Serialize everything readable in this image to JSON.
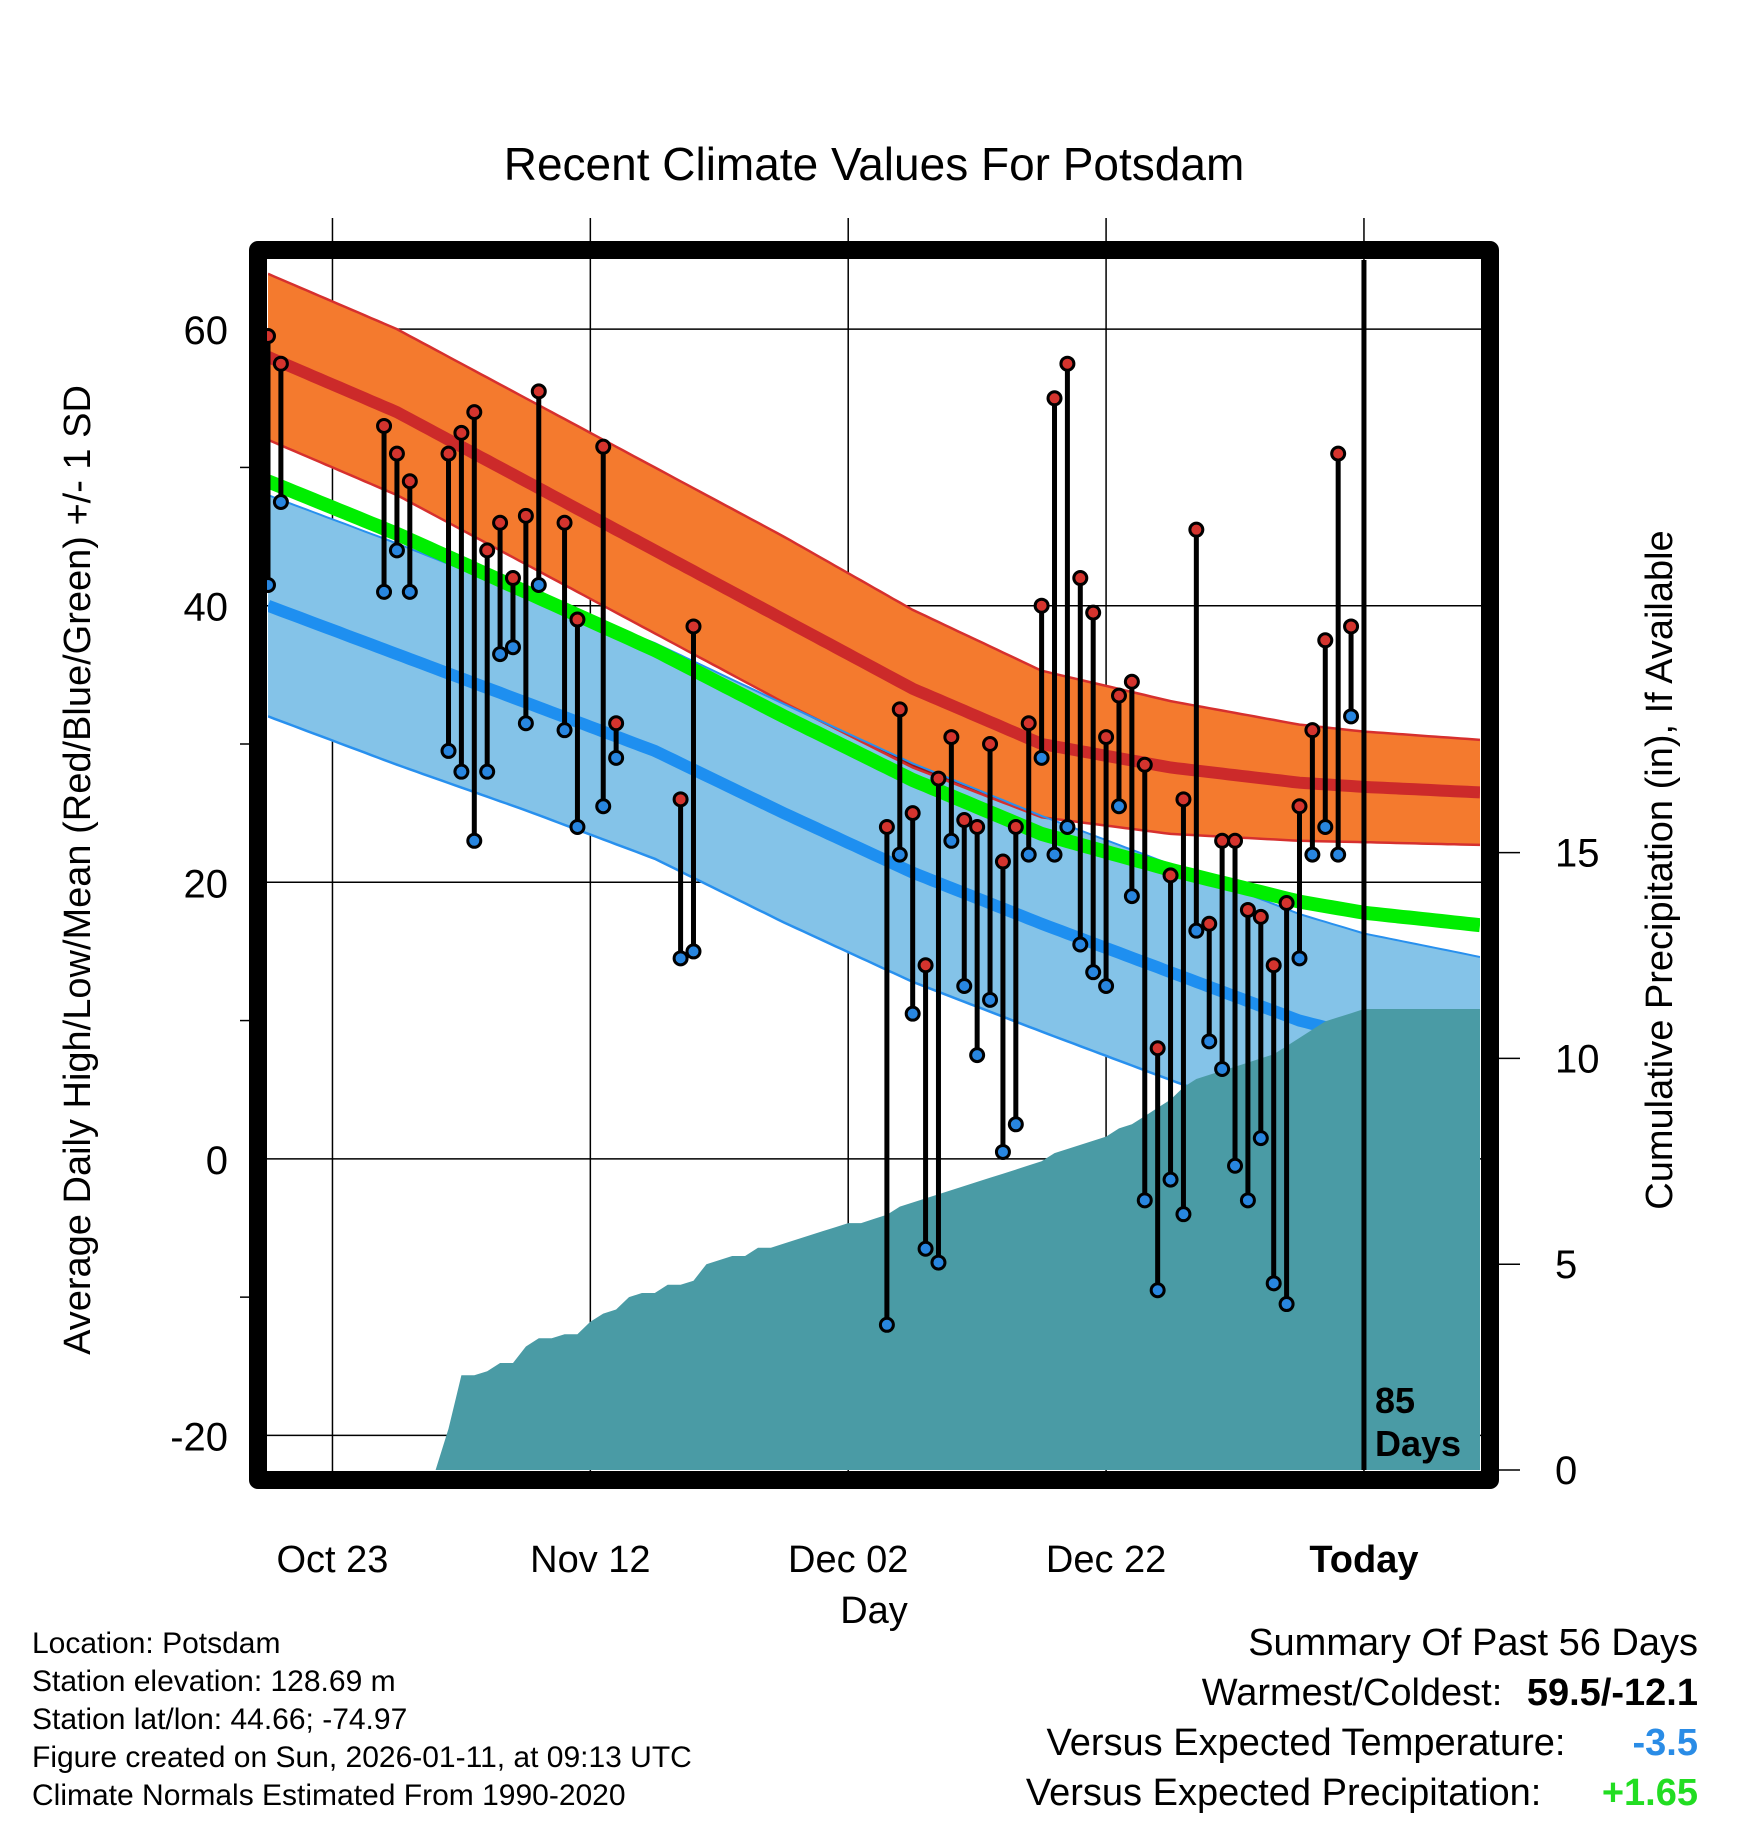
{
  "chart_data": {
    "type": "line",
    "title": "Recent Climate Values For Potsdam",
    "xlabel": "Day",
    "ylabel": "Average Daily High/Low/Mean (Red/Blue/Green) +/- 1 SD",
    "y2label": "Cumulative Precipitation (in), If Available",
    "ylim": [
      -22.5,
      65
    ],
    "y_ticks": [
      -20,
      0,
      20,
      40,
      60
    ],
    "y2lim": [
      0,
      29.4
    ],
    "y2_ticks": [
      0,
      5,
      10,
      15
    ],
    "x_range_days": [
      -85,
      9
    ],
    "x_ticks": [
      {
        "day": -80,
        "label": "Oct 23"
      },
      {
        "day": -60,
        "label": "Nov 12"
      },
      {
        "day": -40,
        "label": "Dec 02"
      },
      {
        "day": -20,
        "label": "Dec 22"
      },
      {
        "day": 0,
        "label": "Today"
      }
    ],
    "today_label": "85 Days",
    "normals": {
      "days": [
        -85,
        -75,
        -65,
        -55,
        -45,
        -35,
        -25,
        -15,
        -5,
        0,
        9
      ],
      "high_mean": [
        58,
        54,
        49,
        44,
        39,
        34,
        30,
        28.3,
        27.2,
        26.9,
        26.5
      ],
      "high_sd": [
        6,
        6,
        6,
        6,
        6,
        5.7,
        5.3,
        4.8,
        4.2,
        4.0,
        3.8
      ],
      "low_mean": [
        40,
        36.5,
        33,
        29.5,
        25,
        20.7,
        17,
        13.5,
        10,
        8.8,
        7.3
      ],
      "low_sd": [
        8,
        8,
        7.8,
        7.8,
        7.9,
        7.9,
        7.8,
        7.8,
        7.7,
        7.5,
        7.3
      ],
      "avg_mean": [
        49,
        45.2,
        41,
        36.8,
        32,
        27.4,
        23.5,
        20.9,
        18.6,
        17.8,
        16.9
      ]
    },
    "daily_obs": [
      {
        "day": -85,
        "high": 59.5,
        "low": 41.5
      },
      {
        "day": -84,
        "high": 57.5,
        "low": 47.5
      },
      {
        "day": -76,
        "high": 53.0,
        "low": 41.0
      },
      {
        "day": -75,
        "high": 51.0,
        "low": 44.0
      },
      {
        "day": -74,
        "high": 49.0,
        "low": 41.0
      },
      {
        "day": -71,
        "high": 51.0,
        "low": 29.5
      },
      {
        "day": -70,
        "high": 52.5,
        "low": 28.0
      },
      {
        "day": -69,
        "high": 54.0,
        "low": 23.0
      },
      {
        "day": -68,
        "high": 44.0,
        "low": 28.0
      },
      {
        "day": -67,
        "high": 46.0,
        "low": 36.5
      },
      {
        "day": -66,
        "high": 42.0,
        "low": 37.0
      },
      {
        "day": -65,
        "high": 46.5,
        "low": 31.5
      },
      {
        "day": -64,
        "high": 55.5,
        "low": 41.5
      },
      {
        "day": -62,
        "high": 46.0,
        "low": 31.0
      },
      {
        "day": -61,
        "high": 39.0,
        "low": 24.0
      },
      {
        "day": -59,
        "high": 51.5,
        "low": 25.5
      },
      {
        "day": -58,
        "high": 31.5,
        "low": 29.0
      },
      {
        "day": -53,
        "high": 26.0,
        "low": 14.5
      },
      {
        "day": -52,
        "high": 38.5,
        "low": 15.0
      },
      {
        "day": -37,
        "high": 24.0,
        "low": -12.0
      },
      {
        "day": -36,
        "high": 32.5,
        "low": 22.0
      },
      {
        "day": -35,
        "high": 25.0,
        "low": 10.5
      },
      {
        "day": -34,
        "high": 14.0,
        "low": -6.5
      },
      {
        "day": -33,
        "high": 27.5,
        "low": -7.5
      },
      {
        "day": -32,
        "high": 30.5,
        "low": 23.0
      },
      {
        "day": -31,
        "high": 24.5,
        "low": 12.5
      },
      {
        "day": -30,
        "high": 24.0,
        "low": 7.5
      },
      {
        "day": -29,
        "high": 30.0,
        "low": 11.5
      },
      {
        "day": -28,
        "high": 21.5,
        "low": 0.5
      },
      {
        "day": -27,
        "high": 24.0,
        "low": 2.5
      },
      {
        "day": -26,
        "high": 31.5,
        "low": 22.0
      },
      {
        "day": -25,
        "high": 40.0,
        "low": 29.0
      },
      {
        "day": -24,
        "high": 55.0,
        "low": 22.0
      },
      {
        "day": -23,
        "high": 57.5,
        "low": 24.0
      },
      {
        "day": -22,
        "high": 42.0,
        "low": 15.5
      },
      {
        "day": -21,
        "high": 39.5,
        "low": 13.5
      },
      {
        "day": -20,
        "high": 30.5,
        "low": 12.5
      },
      {
        "day": -19,
        "high": 33.5,
        "low": 25.5
      },
      {
        "day": -18,
        "high": 34.5,
        "low": 19.0
      },
      {
        "day": -17,
        "high": 28.5,
        "low": -3.0
      },
      {
        "day": -16,
        "high": 8.0,
        "low": -9.5
      },
      {
        "day": -15,
        "high": 20.5,
        "low": -1.5
      },
      {
        "day": -14,
        "high": 26.0,
        "low": -4.0
      },
      {
        "day": -13,
        "high": 45.5,
        "low": 16.5
      },
      {
        "day": -12,
        "high": 17.0,
        "low": 8.5
      },
      {
        "day": -11,
        "high": 23.0,
        "low": 6.5
      },
      {
        "day": -10,
        "high": 23.0,
        "low": -0.5
      },
      {
        "day": -9,
        "high": 18.0,
        "low": -3.0
      },
      {
        "day": -8,
        "high": 17.5,
        "low": 1.5
      },
      {
        "day": -7,
        "high": 14.0,
        "low": -9.0
      },
      {
        "day": -6,
        "high": 18.5,
        "low": -10.5
      },
      {
        "day": -5,
        "high": 25.5,
        "low": 14.5
      },
      {
        "day": -4,
        "high": 31.0,
        "low": 22.0
      },
      {
        "day": -3,
        "high": 37.5,
        "low": 24.0
      },
      {
        "day": -2,
        "high": 51.0,
        "low": 22.0
      },
      {
        "day": -1,
        "high": 38.5,
        "low": 32.0
      }
    ],
    "cumulative_precip": {
      "days": [
        -74,
        -73,
        -72,
        -71,
        -70,
        -69,
        -68,
        -67,
        -66,
        -65,
        -64,
        -63,
        -62,
        -61,
        -60,
        -59,
        -58,
        -57,
        -56,
        -55,
        -54,
        -53,
        -52,
        -51,
        -50,
        -49,
        -48,
        -47,
        -46,
        -45,
        -44,
        -43,
        -42,
        -41,
        -40,
        -39,
        -38,
        -37,
        -36,
        -35,
        -34,
        -33,
        -32,
        -31,
        -30,
        -29,
        -28,
        -27,
        -26,
        -25,
        -24,
        -23,
        -22,
        -21,
        -20,
        -19,
        -18,
        -17,
        -16,
        -15,
        -14,
        -13,
        -12,
        -11,
        -10,
        -9,
        -8,
        -7,
        -6,
        -5,
        -4,
        -3,
        -2,
        -1,
        0,
        9
      ],
      "values": [
        0,
        0,
        0,
        1,
        2.3,
        2.3,
        2.4,
        2.6,
        2.6,
        3.0,
        3.2,
        3.2,
        3.3,
        3.3,
        3.6,
        3.8,
        3.9,
        4.2,
        4.3,
        4.3,
        4.5,
        4.5,
        4.6,
        5.0,
        5.1,
        5.2,
        5.2,
        5.4,
        5.4,
        5.5,
        5.6,
        5.7,
        5.8,
        5.9,
        6.0,
        6.0,
        6.1,
        6.2,
        6.4,
        6.5,
        6.6,
        6.7,
        6.8,
        6.9,
        7.0,
        7.1,
        7.2,
        7.3,
        7.4,
        7.5,
        7.7,
        7.8,
        7.9,
        8.0,
        8.1,
        8.3,
        8.4,
        8.6,
        8.8,
        9.0,
        9.3,
        9.5,
        9.6,
        9.7,
        9.8,
        9.9,
        10.0,
        10.1,
        10.3,
        10.5,
        10.7,
        10.9,
        11.0,
        11.1,
        11.2,
        11.2
      ]
    }
  },
  "footer": {
    "location": "Location: Potsdam",
    "elevation": "Station elevation: 128.69 m",
    "latlon": "Station lat/lon: 44.66; -74.97",
    "created": "Figure created on Sun, 2026-01-11, at 09:13 UTC",
    "normals": "Climate Normals Estimated From 1990-2020"
  },
  "summary": {
    "title": "Summary Of Past 56 Days",
    "warmest_label": "Warmest/Coldest:",
    "warmest_value": "59.5/-12.1",
    "temp_label": "Versus Expected Temperature:",
    "temp_value": "-3.5",
    "precip_label": "Versus Expected Precipitation:",
    "precip_value": "+1.65"
  },
  "colors": {
    "high_band": "#F47A2E",
    "high_line": "#CC2A2A",
    "high_band_edge": "#D6302E",
    "low_band": "#84C3E8",
    "low_line": "#1E8FF0",
    "low_edge": "#2890EE",
    "mean_line": "#00EE00",
    "overlap": "#961418",
    "precip": "#4A9BA5",
    "high_dot": "#D4342E",
    "low_dot": "#2886E0",
    "temp_delta": "#2A8CE6",
    "precip_delta": "#22DD22"
  }
}
